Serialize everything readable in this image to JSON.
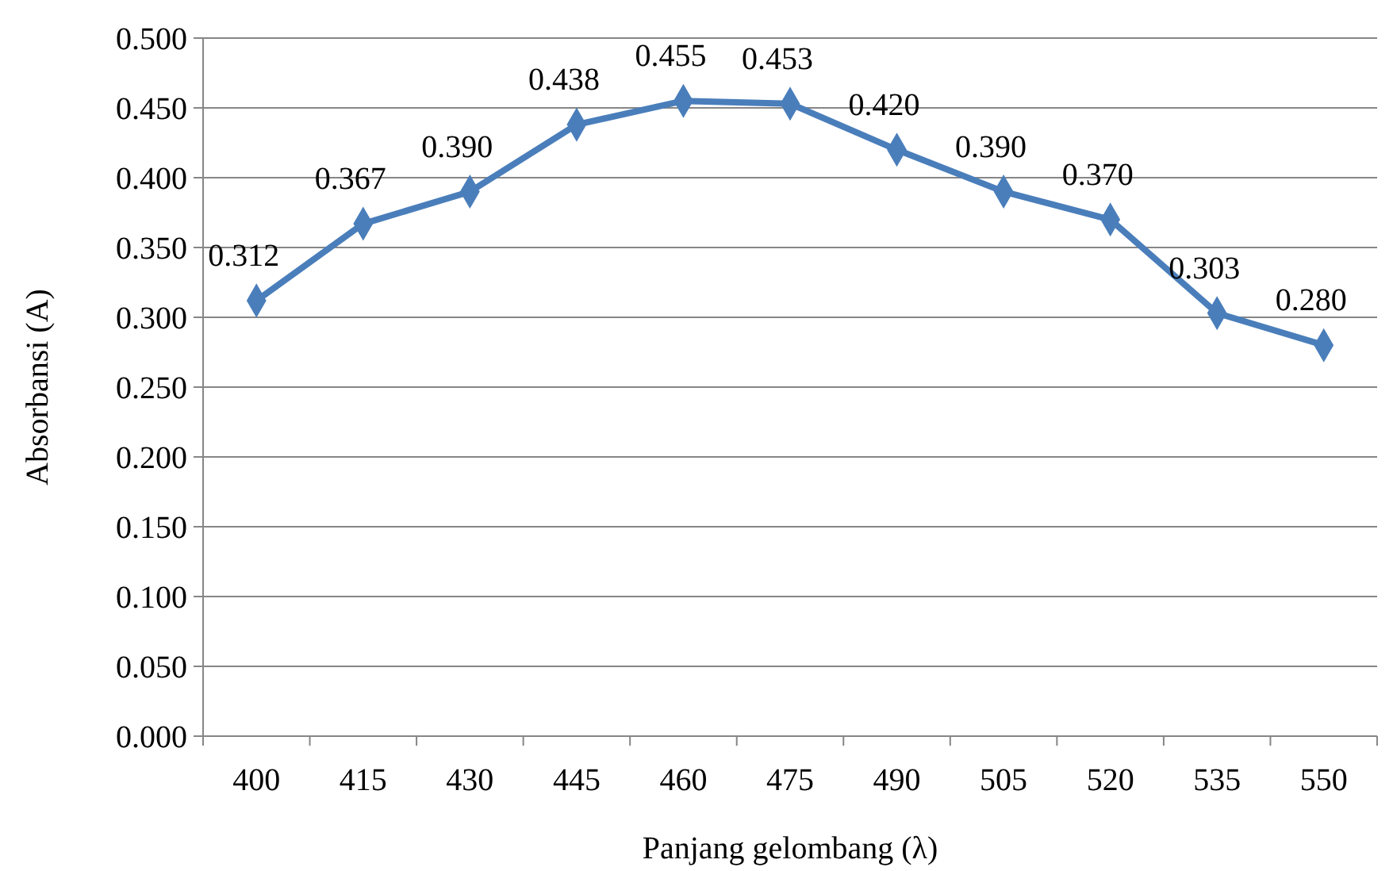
{
  "chart_data": {
    "type": "line",
    "xlabel": "Panjang gelombang (λ)",
    "ylabel": "Absorbansi (A)",
    "categories": [
      "400",
      "415",
      "430",
      "445",
      "460",
      "475",
      "490",
      "505",
      "520",
      "535",
      "550"
    ],
    "series": [
      {
        "color": "#4a7ebb",
        "values": [
          0.312,
          0.367,
          0.39,
          0.438,
          0.455,
          0.453,
          0.42,
          0.39,
          0.37,
          0.303,
          0.28
        ],
        "value_labels": [
          "0.312",
          "0.367",
          "0.390",
          "0.438",
          "0.455",
          "0.453",
          "0.420",
          "0.390",
          "0.370",
          "0.303",
          "0.280"
        ]
      }
    ],
    "ylim": [
      0,
      0.5
    ],
    "yticks": [
      {
        "value": 0,
        "label": "0.000"
      },
      {
        "value": 0.05,
        "label": "0.050"
      },
      {
        "value": 0.1,
        "label": "0.100"
      },
      {
        "value": 0.15,
        "label": "0.150"
      },
      {
        "value": 0.2,
        "label": "0.200"
      },
      {
        "value": 0.25,
        "label": "0.250"
      },
      {
        "value": 0.3,
        "label": "0.300"
      },
      {
        "value": 0.35,
        "label": "0.350"
      },
      {
        "value": 0.4,
        "label": "0.400"
      },
      {
        "value": 0.45,
        "label": "0.450"
      },
      {
        "value": 0.5,
        "label": "0.500"
      }
    ],
    "grid": "y",
    "marker": "diamond",
    "line_style": "solid"
  }
}
